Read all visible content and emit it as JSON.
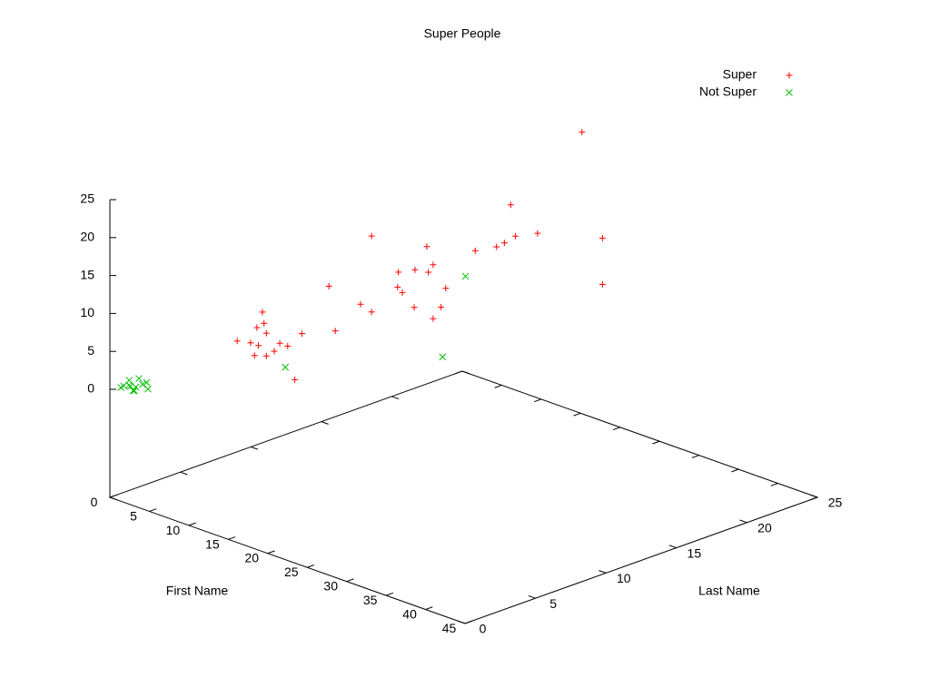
{
  "chart_data": {
    "type": "scatter3d",
    "title": "Super People",
    "xlabel": "First Name",
    "ylabel": "Last Name",
    "xlim": [
      0,
      45
    ],
    "ylim": [
      0,
      25
    ],
    "zlim": [
      0,
      25
    ],
    "xticks": [
      0,
      5,
      10,
      15,
      20,
      25,
      30,
      35,
      40,
      45
    ],
    "yticks": [
      0,
      5,
      10,
      15,
      20,
      25
    ],
    "zticks": [
      0,
      5,
      10,
      15,
      20,
      25
    ],
    "legend": "top-right",
    "series": [
      {
        "name": "Super",
        "color": "#ff0000",
        "marker": "+",
        "x": [
          24.1,
          24.0,
          26.7,
          27.4,
          24.6,
          23.2,
          22.2,
          19.5,
          22.3,
          15.3,
          18.7,
          20.8,
          22.5,
          23.1,
          9.9,
          18.6,
          19.2,
          24.7,
          26.7,
          13.9,
          20.7,
          24.1,
          15.3,
          23.1,
          10.4,
          10.6,
          9.7,
          10.9,
          10.7,
          15.4,
          7.2,
          8.9,
          9.9,
          12.6,
          13.6,
          11.9,
          9.4,
          10.9,
          14.5
        ],
        "y": [
          20,
          15,
          20,
          15,
          15,
          15,
          15,
          15,
          10,
          10,
          10,
          10,
          10,
          10,
          10,
          10,
          10,
          10,
          20,
          10,
          10,
          10,
          10,
          10,
          5,
          5,
          5,
          5,
          10,
          5,
          5,
          5,
          5,
          5,
          5,
          5,
          5,
          5,
          5
        ],
        "z": [
          29.5,
          23.2,
          16.5,
          20.7,
          19.3,
          17.9,
          17.0,
          15.5,
          20.4,
          19.2,
          15.7,
          16.8,
          17.1,
          18.3,
          10.6,
          13.7,
          13.2,
          15.8,
          10.4,
          9.7,
          11.8,
          13.1,
          9.2,
          11.2,
          10.7,
          9.3,
          8.4,
          8.1,
          5.0,
          9.7,
          5.7,
          6.1,
          6.1,
          7.4,
          7.4,
          6.1,
          4.6,
          5.1,
          3.3
        ]
      },
      {
        "name": "Not Super",
        "color": "#00c000",
        "marker": "x",
        "x": [
          27.2,
          24.3,
          13.3,
          0.5,
          1,
          1.5,
          2,
          1,
          0.8,
          2.2,
          1.8,
          0.3,
          2.5,
          1.2,
          1.7
        ],
        "y": [
          10,
          10,
          5,
          0.5,
          0.8,
          1,
          1.2,
          1.5,
          1,
          0.5,
          1.6,
          1.2,
          1.3,
          0.3,
          0.7
        ],
        "z": [
          18.3,
          6.6,
          4.5,
          0.1,
          0.4,
          0.2,
          0.6,
          0.8,
          0,
          0.3,
          0.5,
          0.5,
          0.1,
          0.7,
          0
        ]
      }
    ]
  }
}
